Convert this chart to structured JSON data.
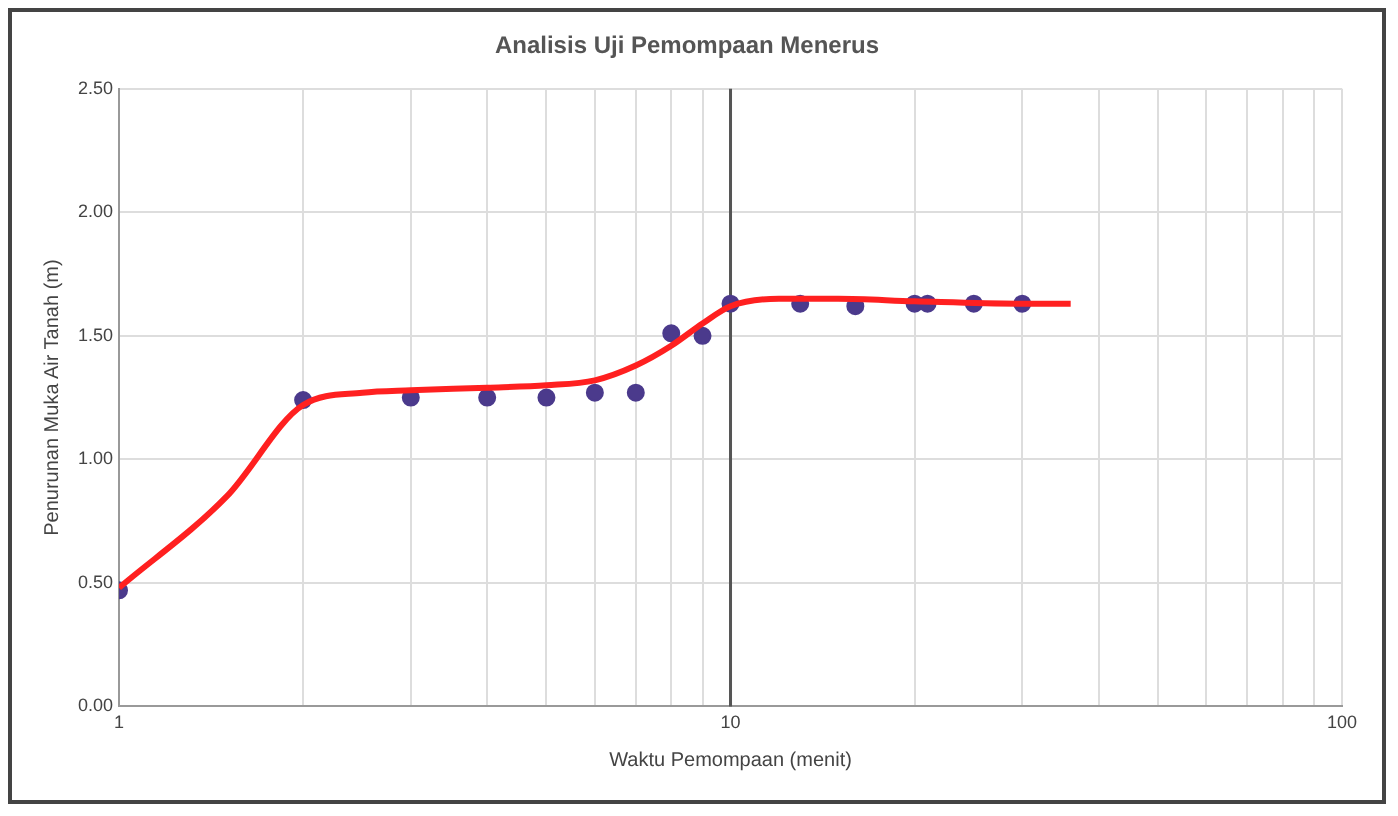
{
  "chart_data": {
    "type": "scatter",
    "title": "Analisis Uji Pemompaan Menerus",
    "xlabel": "Waktu Pemompaan (menit)",
    "ylabel": "Penurunan Muka Air Tanah (m)",
    "log": "x",
    "grid": true,
    "legend": false,
    "marker": "circle",
    "ref_lines": [
      {
        "axis": "x",
        "value": 10,
        "color": "#555555"
      }
    ],
    "xlim": [
      1,
      100
    ],
    "ylim": [
      0,
      2.5
    ],
    "xticks": [
      1,
      {
        "value": 2,
        "label": null
      },
      {
        "value": 3,
        "label": null
      },
      {
        "value": 4,
        "label": null
      },
      {
        "value": 5,
        "label": null
      },
      {
        "value": 6,
        "label": null
      },
      {
        "value": 7,
        "label": null
      },
      {
        "value": 8,
        "label": null
      },
      {
        "value": 9,
        "label": null
      },
      10,
      {
        "value": 20,
        "label": null
      },
      {
        "value": 30,
        "label": null
      },
      {
        "value": 40,
        "label": null
      },
      {
        "value": 50,
        "label": null
      },
      {
        "value": 60,
        "label": null
      },
      {
        "value": 70,
        "label": null
      },
      {
        "value": 80,
        "label": null
      },
      {
        "value": 90,
        "label": null
      },
      100
    ],
    "yticks": [
      {
        "value": 0,
        "label": "0.00"
      },
      {
        "value": 0.5,
        "label": "0.50"
      },
      {
        "value": 1,
        "label": "1.00"
      },
      {
        "value": 1.5,
        "label": "1.50"
      },
      {
        "value": 2,
        "label": "2.00"
      },
      {
        "value": 2.5,
        "label": "2.50"
      }
    ],
    "series": [
      {
        "type": "line",
        "color": "#ff2020",
        "marker": "none",
        "x": [
          1,
          1.5,
          2,
          2.5,
          3,
          4,
          5,
          6,
          7,
          8,
          9,
          10,
          12,
          15,
          20,
          30,
          36
        ],
        "values": [
          0.48,
          0.85,
          1.22,
          1.27,
          1.28,
          1.29,
          1.3,
          1.32,
          1.38,
          1.46,
          1.55,
          1.62,
          1.65,
          1.65,
          1.64,
          1.63,
          1.63
        ]
      },
      {
        "color": "#4b3a8c",
        "x": [
          1,
          2,
          3,
          4,
          5,
          6,
          7,
          8,
          9,
          10,
          13,
          16,
          20,
          21,
          25,
          30
        ],
        "values": [
          0.47,
          1.24,
          1.25,
          1.25,
          1.25,
          1.27,
          1.27,
          1.51,
          1.5,
          1.63,
          1.63,
          1.62,
          1.63,
          1.63,
          1.63,
          1.63
        ]
      }
    ]
  }
}
